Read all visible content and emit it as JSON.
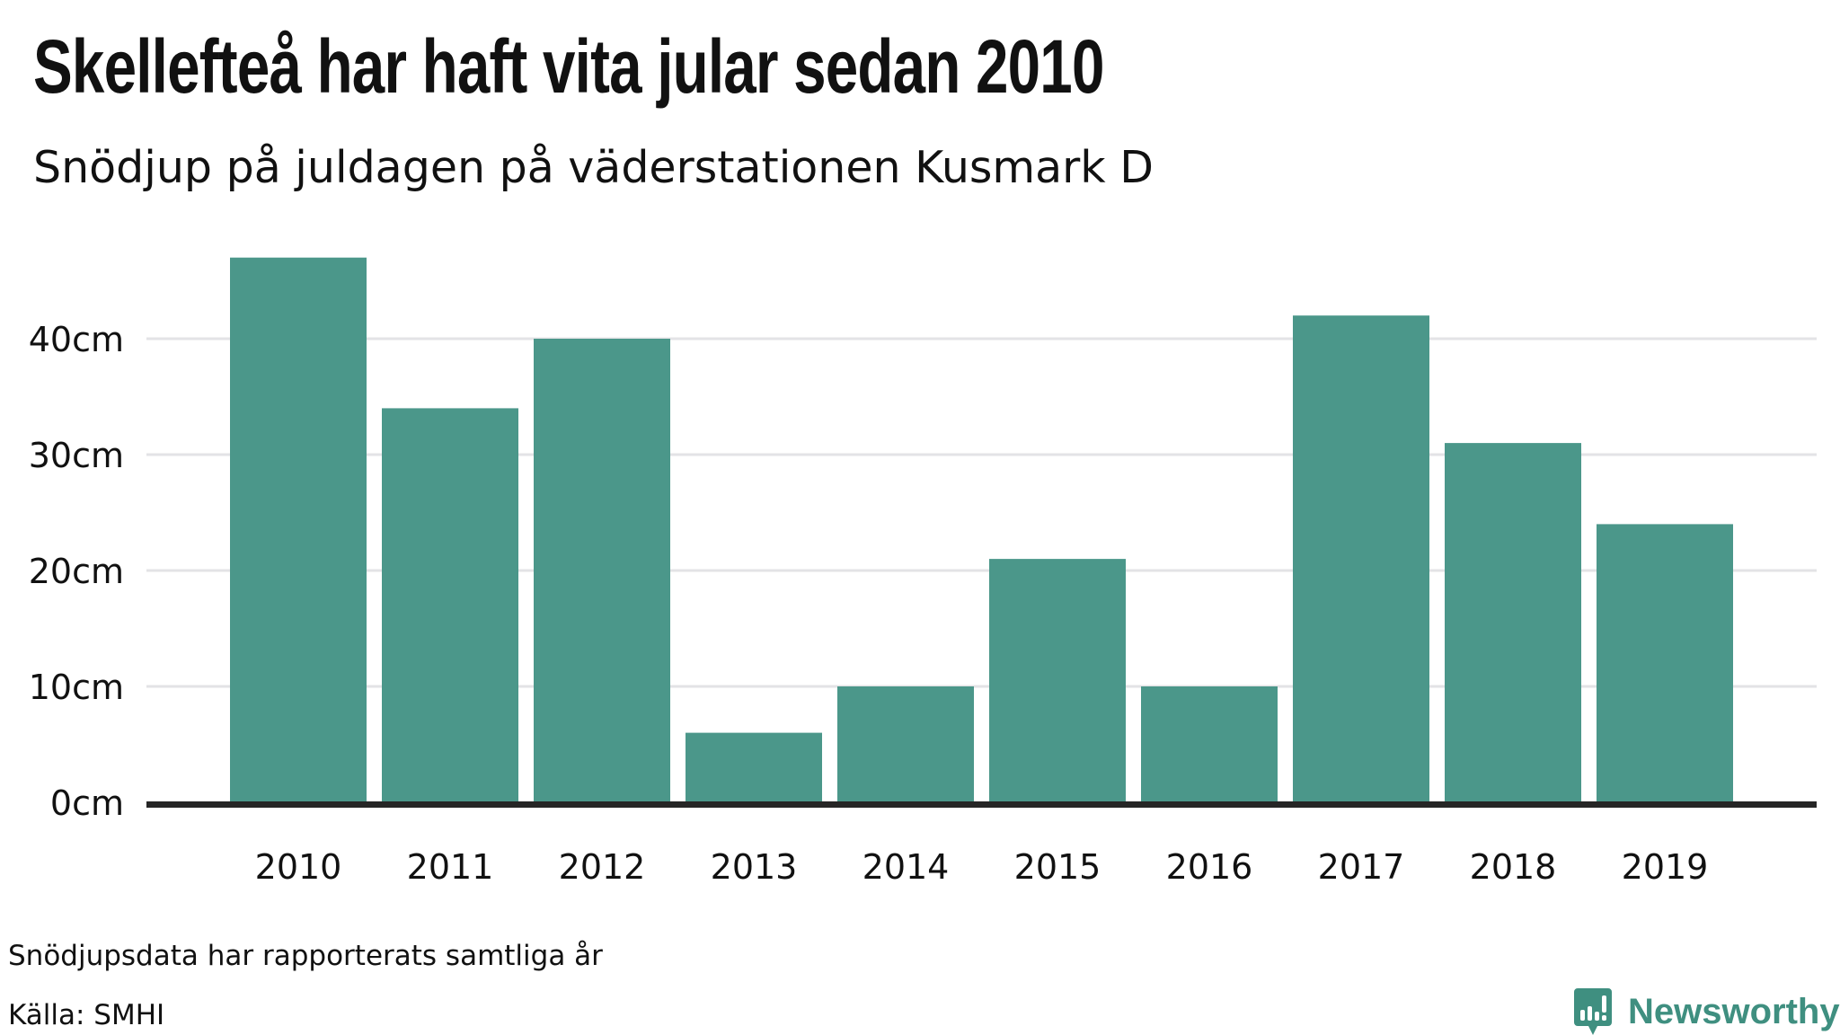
{
  "chart_data": {
    "type": "bar",
    "title": "Skellefteå har haft vita jular sedan 2010",
    "subtitle": "Snödjup på juldagen på väderstationen Kusmark D",
    "categories": [
      "2010",
      "2011",
      "2012",
      "2013",
      "2014",
      "2015",
      "2016",
      "2017",
      "2018",
      "2019"
    ],
    "values": [
      47,
      34,
      40,
      6,
      10,
      21,
      10,
      42,
      31,
      24
    ],
    "unit": "cm",
    "xlabel": "",
    "ylabel": "",
    "ylim": [
      0,
      47
    ],
    "yticks": [
      0,
      10,
      20,
      30,
      40
    ],
    "ytick_labels": [
      "0cm",
      "10cm",
      "20cm",
      "30cm",
      "40cm"
    ],
    "grid": true,
    "bar_color": "#4b978a"
  },
  "footer": {
    "note": "Snödjupsdata har rapporterats samtliga år",
    "source": "Källa: SMHI",
    "brand": "Newsworthy",
    "brand_color": "#3f8f80"
  }
}
